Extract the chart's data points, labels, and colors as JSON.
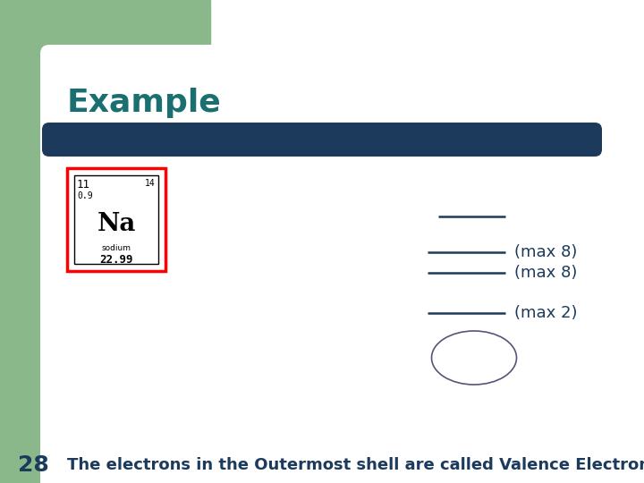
{
  "bg_color": "#ffffff",
  "green_color": "#8ab88a",
  "title": "Example",
  "title_color": "#1a7070",
  "title_fontsize": 26,
  "blue_bar_color": "#1c3a5c",
  "line_color": "#1c3a5c",
  "label_color": "#1c3a5c",
  "label_fontsize": 13,
  "footer_num": "28",
  "footer_text": "The electrons in the Outermost shell are called Valence Electrons",
  "footer_color": "#1c3a5c",
  "footer_fontsize": 13
}
